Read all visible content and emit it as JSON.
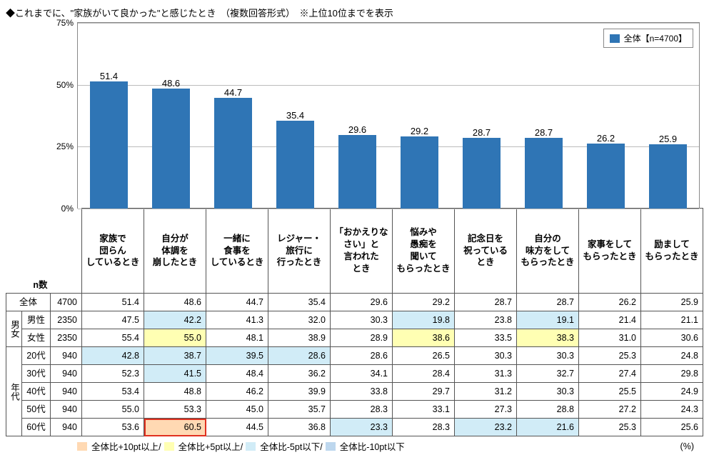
{
  "title": "◆これまでに、\"家族がいて良かった\"と感じたとき　（複数回答形式）　※上位10位までを表示",
  "chart": {
    "type": "bar",
    "legend_label": "全体【n=4700】",
    "bar_color": "#2f75b5",
    "grid_color": "#bbbbbb",
    "background_color": "#ffffff",
    "ylim": [
      0,
      75
    ],
    "ytick_step": 25,
    "ytick_labels": [
      "0%",
      "25%",
      "50%",
      "75%"
    ],
    "categories": [
      "家族で\n団らん\nしているとき",
      "自分が\n体調を\n崩したとき",
      "一緒に\n食事を\nしているとき",
      "レジャー・\n旅行に\n行ったとき",
      "「おかえりな\nさい」と\n言われた\nとき",
      "悩みや\n愚痴を\n聞いて\nもらったとき",
      "記念日を\n祝っている\nとき",
      "自分の\n味方をして\nもらったとき",
      "家事をして\nもらったとき",
      "励まして\nもらったとき"
    ],
    "values": [
      51.4,
      48.6,
      44.7,
      35.4,
      29.6,
      29.2,
      28.7,
      28.7,
      26.2,
      25.9
    ],
    "value_label_fontsize": 13
  },
  "table": {
    "group_header_m_f": "男女",
    "group_header_age": "年代",
    "n_label": "n数",
    "unit_label": "(%)",
    "rows": [
      {
        "group": "",
        "label": "全体",
        "n": 4700,
        "vals": [
          51.4,
          48.6,
          44.7,
          35.4,
          29.6,
          29.2,
          28.7,
          28.7,
          26.2,
          25.9
        ],
        "hl": [
          "",
          "",
          "",
          "",
          "",
          "",
          "",
          "",
          "",
          ""
        ]
      },
      {
        "group": "mf",
        "label": "男性",
        "n": 2350,
        "vals": [
          47.5,
          42.2,
          41.3,
          32.0,
          30.3,
          19.8,
          23.8,
          19.1,
          21.4,
          21.1
        ],
        "hl": [
          "",
          "lt",
          "",
          "",
          "",
          "lt",
          "",
          "lt",
          "",
          ""
        ]
      },
      {
        "group": "mf",
        "label": "女性",
        "n": 2350,
        "vals": [
          55.4,
          55.0,
          48.1,
          38.9,
          28.9,
          38.6,
          33.5,
          38.3,
          31.0,
          30.6
        ],
        "hl": [
          "",
          "y",
          "",
          "",
          "",
          "y",
          "",
          "y",
          "",
          ""
        ]
      },
      {
        "group": "age",
        "label": "20代",
        "n": 940,
        "vals": [
          42.8,
          38.7,
          39.5,
          28.6,
          28.6,
          26.5,
          30.3,
          30.3,
          25.3,
          24.8
        ],
        "hl": [
          "lt",
          "lt",
          "lt",
          "lt",
          "",
          "",
          "",
          "",
          "",
          ""
        ]
      },
      {
        "group": "age",
        "label": "30代",
        "n": 940,
        "vals": [
          52.3,
          41.5,
          48.4,
          36.2,
          34.1,
          28.4,
          31.3,
          32.7,
          27.4,
          29.8
        ],
        "hl": [
          "",
          "lt",
          "",
          "",
          "",
          "",
          "",
          "",
          "",
          ""
        ]
      },
      {
        "group": "age",
        "label": "40代",
        "n": 940,
        "vals": [
          53.4,
          48.8,
          46.2,
          39.9,
          33.8,
          29.7,
          31.2,
          30.3,
          25.5,
          24.9
        ],
        "hl": [
          "",
          "",
          "",
          "",
          "",
          "",
          "",
          "",
          "",
          ""
        ]
      },
      {
        "group": "age",
        "label": "50代",
        "n": 940,
        "vals": [
          55.0,
          53.3,
          45.0,
          35.7,
          28.3,
          33.1,
          27.3,
          28.8,
          27.2,
          24.3
        ],
        "hl": [
          "",
          "",
          "",
          "",
          "",
          "",
          "",
          "",
          "",
          ""
        ]
      },
      {
        "group": "age",
        "label": "60代",
        "n": 940,
        "vals": [
          53.6,
          60.5,
          44.5,
          36.8,
          23.3,
          28.3,
          23.2,
          21.6,
          25.3,
          25.6
        ],
        "hl": [
          "",
          "or",
          "",
          "",
          "lt",
          "",
          "lt",
          "lt",
          "",
          ""
        ],
        "box": [
          false,
          true,
          false,
          false,
          false,
          false,
          false,
          false,
          false,
          false
        ]
      }
    ]
  },
  "legend_notes": {
    "orange": "全体比+10pt以上/",
    "yellow": "全体比+5pt以上/",
    "ltblue": "全体比-5pt以下/",
    "blue": "全体比-10pt以下"
  },
  "colors": {
    "orange": "#ffd9b3",
    "yellow": "#ffffb3",
    "ltblue": "#d1ecf7",
    "blue": "#bdd7ee"
  }
}
